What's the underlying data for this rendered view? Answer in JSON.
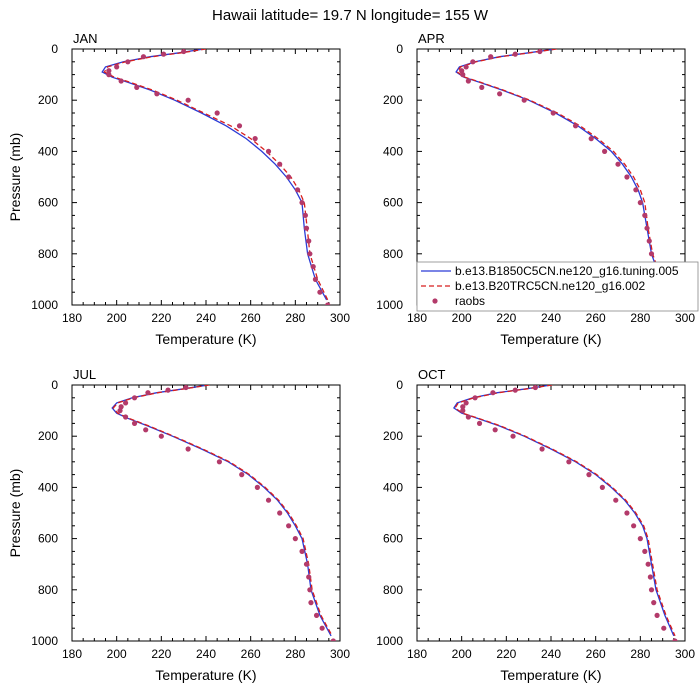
{
  "figure_title": "Hawaii  latitude= 19.7 N longitude= 155 W",
  "colors": {
    "model1": "#2b3bd6",
    "model2": "#d81e1e",
    "obs": "#b33a6a",
    "axis": "#000000"
  },
  "chart_data": [
    {
      "type": "line",
      "panel": "JAN",
      "xlabel": "Temperature (K)",
      "ylabel": "Pressure (mb)",
      "xlim": [
        180,
        300
      ],
      "ylim": [
        0,
        1000
      ],
      "y_inverted": true,
      "xticks": [
        180,
        200,
        220,
        240,
        260,
        280,
        300
      ],
      "yticks": [
        0,
        200,
        400,
        600,
        800,
        1000
      ],
      "series": [
        {
          "name": "b.e13.B1850C5CN.ne120_g16.tuning.005",
          "style": "solid",
          "color": "#2b3bd6",
          "x": [
            239,
            228,
            215,
            203,
            195,
            193.5,
            198,
            205,
            215,
            226,
            238,
            249,
            258,
            265,
            271,
            276,
            280,
            283,
            284,
            285.5,
            289,
            294
          ],
          "y": [
            0,
            15,
            30,
            50,
            70,
            90,
            110,
            130,
            160,
            200,
            250,
            300,
            350,
            400,
            450,
            500,
            550,
            600,
            700,
            800,
            900,
            980
          ]
        },
        {
          "name": "b.e13.B20TRC5CN.ne120_g16.002",
          "style": "dashed",
          "color": "#d81e1e",
          "x": [
            240,
            229,
            216,
            204,
            196,
            194.5,
            199,
            206,
            216,
            227,
            239,
            251,
            260,
            267,
            273,
            278,
            281.5,
            284,
            285.3,
            286.5,
            290,
            294.5
          ],
          "y": [
            0,
            15,
            30,
            50,
            70,
            90,
            110,
            130,
            160,
            200,
            250,
            300,
            350,
            400,
            450,
            500,
            550,
            600,
            700,
            800,
            900,
            980
          ]
        },
        {
          "name": "raobs",
          "style": "markers",
          "color": "#b33a6a",
          "x": [
            230,
            221,
            212,
            205,
            200,
            196.5,
            196.5,
            202,
            209,
            218,
            232,
            245,
            255,
            262,
            268,
            273,
            277,
            281,
            283,
            284.5,
            285,
            286,
            286.5,
            288,
            289,
            291,
            294.5
          ],
          "y": [
            10,
            20,
            30,
            50,
            70,
            85,
            100,
            125,
            150,
            175,
            200,
            250,
            300,
            350,
            400,
            450,
            500,
            550,
            600,
            650,
            700,
            750,
            800,
            850,
            900,
            950,
            1000
          ]
        }
      ]
    },
    {
      "type": "line",
      "panel": "APR",
      "xlabel": "Temperature (K)",
      "ylabel": "",
      "xlim": [
        180,
        300
      ],
      "ylim": [
        0,
        1000
      ],
      "y_inverted": true,
      "xticks": [
        180,
        200,
        220,
        240,
        260,
        280,
        300
      ],
      "yticks": [
        0,
        200,
        400,
        600,
        800,
        1000
      ],
      "legend_position": "lower-right",
      "series": [
        {
          "name": "b.e13.B1850C5CN.ne120_g16.tuning.005",
          "style": "solid",
          "color": "#2b3bd6",
          "x": [
            242,
            230,
            217,
            206,
            199,
            197.5,
            201,
            208,
            218,
            230,
            242,
            252,
            260,
            267,
            272,
            276,
            279,
            281,
            283,
            285,
            289,
            294
          ],
          "y": [
            0,
            15,
            30,
            50,
            70,
            90,
            110,
            130,
            160,
            200,
            250,
            300,
            350,
            400,
            450,
            500,
            550,
            600,
            700,
            800,
            900,
            980
          ]
        },
        {
          "name": "b.e13.B20TRC5CN.ne120_g16.002",
          "style": "dashed",
          "color": "#d81e1e",
          "x": [
            242.5,
            230.5,
            217.5,
            206.5,
            199.5,
            198,
            201.5,
            208.5,
            218.5,
            230.5,
            242.8,
            253,
            261,
            268,
            273,
            277,
            280,
            282,
            283.5,
            285.5,
            289.5,
            294.5
          ],
          "y": [
            0,
            15,
            30,
            50,
            70,
            90,
            110,
            130,
            160,
            200,
            250,
            300,
            350,
            400,
            450,
            500,
            550,
            600,
            700,
            800,
            900,
            980
          ]
        },
        {
          "name": "raobs",
          "style": "markers",
          "color": "#b33a6a",
          "x": [
            235,
            224,
            213,
            205,
            202,
            200,
            200.5,
            203,
            209,
            217,
            228,
            241,
            251,
            258,
            264,
            270,
            274,
            278,
            280,
            282,
            283,
            284,
            285,
            286,
            288,
            291,
            294.5
          ],
          "y": [
            10,
            20,
            30,
            50,
            70,
            85,
            100,
            125,
            150,
            175,
            200,
            250,
            300,
            350,
            400,
            450,
            500,
            550,
            600,
            650,
            700,
            750,
            800,
            850,
            900,
            950,
            1000
          ]
        }
      ]
    },
    {
      "type": "line",
      "panel": "JUL",
      "xlabel": "Temperature (K)",
      "ylabel": "Pressure (mb)",
      "xlim": [
        180,
        300
      ],
      "ylim": [
        0,
        1000
      ],
      "y_inverted": true,
      "xticks": [
        180,
        200,
        220,
        240,
        260,
        280,
        300
      ],
      "yticks": [
        0,
        200,
        400,
        600,
        800,
        1000
      ],
      "series": [
        {
          "name": "b.e13.B1850C5CN.ne120_g16.tuning.005",
          "style": "solid",
          "color": "#2b3bd6",
          "x": [
            241,
            230,
            218,
            207,
            200,
            198,
            200,
            205,
            214,
            225,
            238,
            250,
            259,
            266,
            272,
            276.5,
            280,
            283,
            285.5,
            287,
            291,
            296
          ],
          "y": [
            0,
            15,
            30,
            50,
            70,
            90,
            110,
            130,
            160,
            200,
            250,
            300,
            350,
            400,
            450,
            500,
            550,
            600,
            700,
            800,
            900,
            980
          ]
        },
        {
          "name": "b.e13.B20TRC5CN.ne120_g16.002",
          "style": "dashed",
          "color": "#d81e1e",
          "x": [
            241.5,
            230.5,
            218.5,
            207.5,
            200.5,
            198.5,
            200.5,
            205.5,
            214.5,
            225.5,
            238.5,
            250.5,
            259.5,
            266.5,
            272.5,
            277,
            280.5,
            283.5,
            286,
            287.5,
            291.5,
            296.5
          ],
          "y": [
            0,
            15,
            30,
            50,
            70,
            90,
            110,
            130,
            160,
            200,
            250,
            300,
            350,
            400,
            450,
            500,
            550,
            600,
            700,
            800,
            900,
            980
          ]
        },
        {
          "name": "raobs",
          "style": "markers",
          "color": "#b33a6a",
          "x": [
            231,
            223,
            214,
            208,
            204,
            202,
            201.5,
            204,
            208,
            213,
            220,
            232,
            246,
            256,
            263,
            268,
            273,
            277,
            280,
            283,
            285,
            286,
            286.5,
            287,
            289.5,
            292,
            297
          ],
          "y": [
            10,
            20,
            30,
            50,
            70,
            85,
            100,
            125,
            150,
            175,
            200,
            250,
            300,
            350,
            400,
            450,
            500,
            550,
            600,
            650,
            700,
            750,
            800,
            850,
            900,
            950,
            1000
          ]
        }
      ]
    },
    {
      "type": "line",
      "panel": "OCT",
      "xlabel": "Temperature (K)",
      "ylabel": "",
      "xlim": [
        180,
        300
      ],
      "ylim": [
        0,
        1000
      ],
      "y_inverted": true,
      "xticks": [
        180,
        200,
        220,
        240,
        260,
        280,
        300
      ],
      "yticks": [
        0,
        200,
        400,
        600,
        800,
        1000
      ],
      "series": [
        {
          "name": "b.e13.B1850C5CN.ne120_g16.tuning.005",
          "style": "solid",
          "color": "#2b3bd6",
          "x": [
            240,
            229,
            216,
            205,
            198,
            196.5,
            200,
            207,
            217,
            228,
            240,
            251,
            260,
            267,
            273,
            277.5,
            281,
            283,
            285,
            287,
            291,
            295
          ],
          "y": [
            0,
            15,
            30,
            50,
            70,
            90,
            110,
            130,
            160,
            200,
            250,
            300,
            350,
            400,
            450,
            500,
            550,
            600,
            700,
            800,
            900,
            980
          ]
        },
        {
          "name": "b.e13.B20TRC5CN.ne120_g16.002",
          "style": "dashed",
          "color": "#d81e1e",
          "x": [
            240.5,
            229.5,
            216.5,
            205.5,
            198.5,
            197,
            200.5,
            207.5,
            217.5,
            228.5,
            240.5,
            251.5,
            260.5,
            267.5,
            273.5,
            278,
            281.5,
            283.5,
            285.5,
            287.5,
            291.5,
            295.5
          ],
          "y": [
            0,
            15,
            30,
            50,
            70,
            90,
            110,
            130,
            160,
            200,
            250,
            300,
            350,
            400,
            450,
            500,
            550,
            600,
            700,
            800,
            900,
            980
          ]
        },
        {
          "name": "raobs",
          "style": "markers",
          "color": "#b33a6a",
          "x": [
            233,
            224,
            214,
            206,
            202,
            200.5,
            200.5,
            203,
            208,
            215,
            223,
            236,
            248,
            257,
            263,
            269,
            274,
            277,
            280,
            282,
            283.5,
            284.5,
            285,
            286,
            287.5,
            290.5,
            295.5
          ],
          "y": [
            10,
            20,
            30,
            50,
            70,
            85,
            100,
            125,
            150,
            175,
            200,
            250,
            300,
            350,
            400,
            450,
            500,
            550,
            600,
            650,
            700,
            750,
            800,
            850,
            900,
            950,
            1000
          ]
        }
      ]
    }
  ]
}
